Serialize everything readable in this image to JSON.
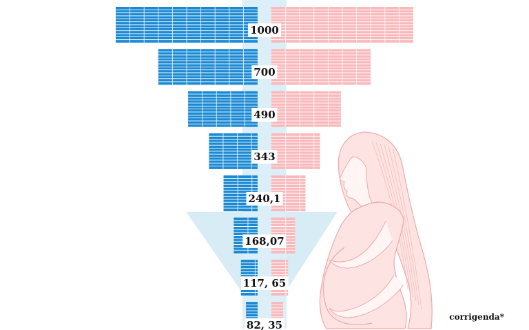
{
  "colors": {
    "boys": "#1b8ad3",
    "girls": "#f9b9bc",
    "center_band": "#dceef7",
    "arrow": "#d8ecf6",
    "woman_fill": "#fde4e3",
    "woman_line": "#f0a6a8"
  },
  "levels": [
    {
      "label": "1000",
      "value": 1000
    },
    {
      "label": "700",
      "value": 700
    },
    {
      "label": "490",
      "value": 490
    },
    {
      "label": "343",
      "value": 343
    },
    {
      "label": "240,1",
      "value": 240.1
    },
    {
      "label": "168,07",
      "value": 168.07
    },
    {
      "label": "117, 65",
      "value": 117.65
    },
    {
      "label": "82, 35",
      "value": 82.35
    }
  ],
  "credit": "corrigenda*",
  "illustration": "pregnant-woman-icon"
}
